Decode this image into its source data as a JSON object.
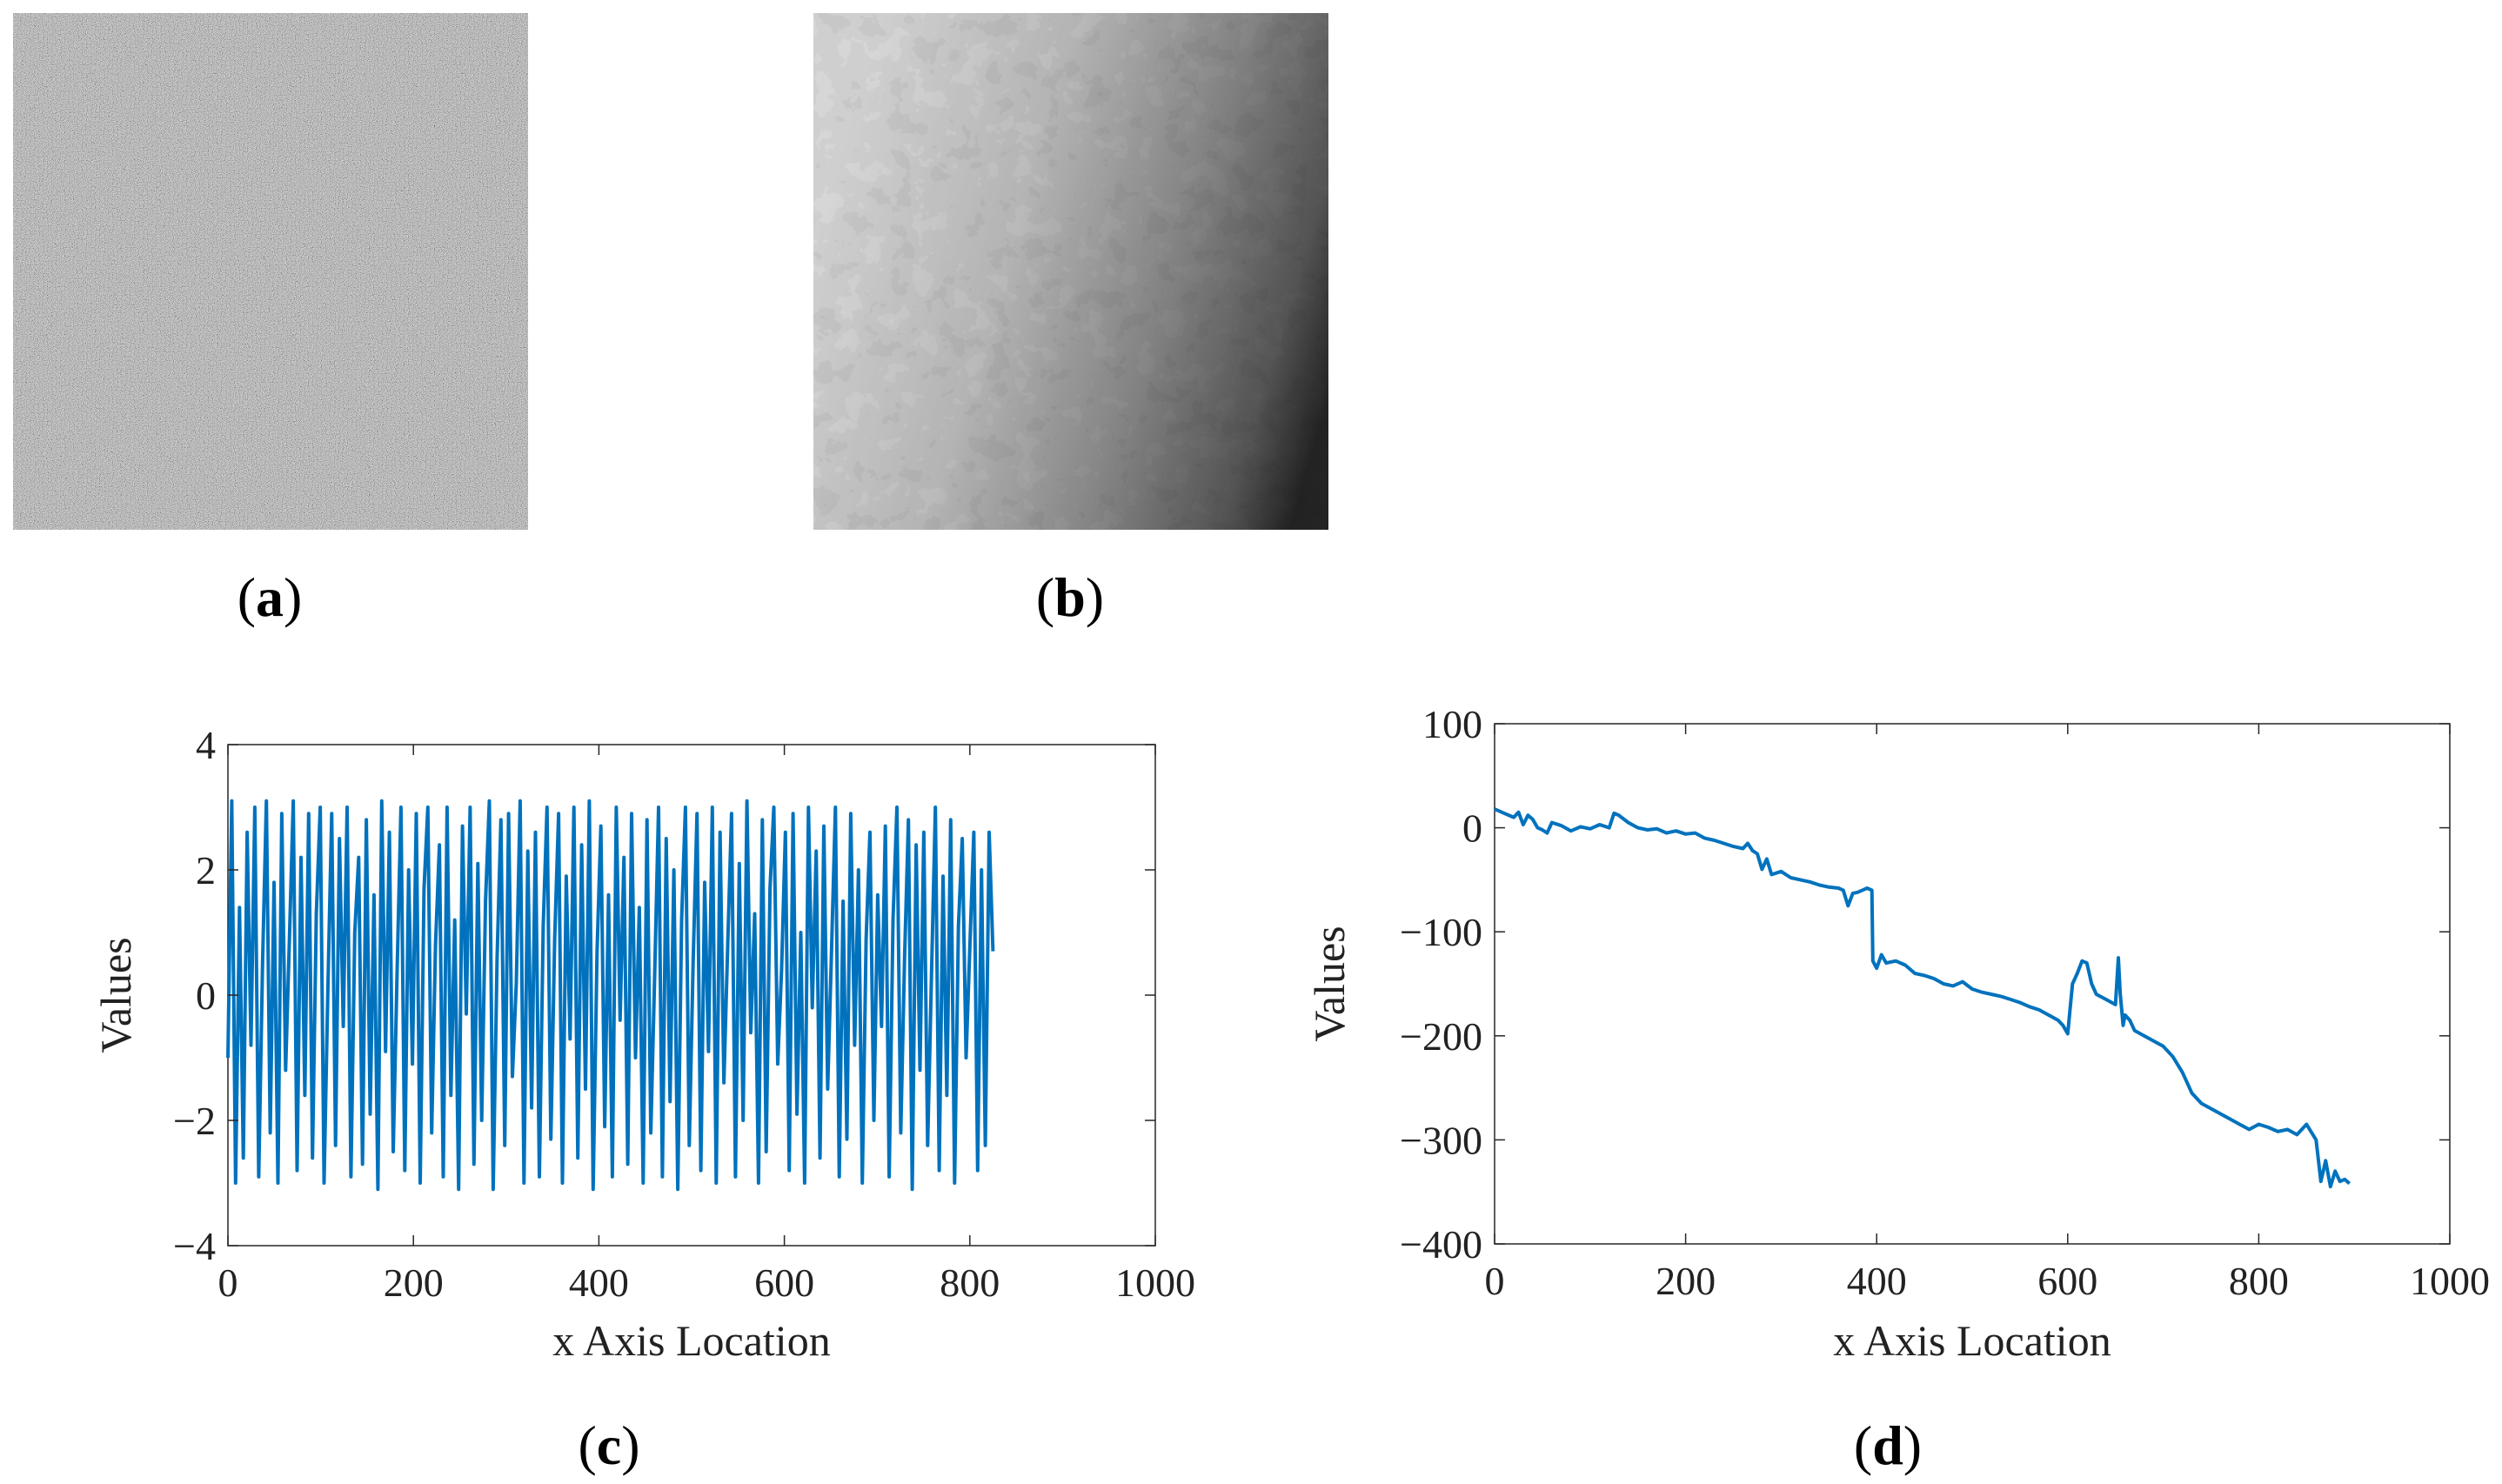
{
  "panels": {
    "a": {
      "label_open": "(",
      "label_letter": "a",
      "label_close": ")"
    },
    "b": {
      "label_open": "(",
      "label_letter": "b",
      "label_close": ")"
    },
    "c": {
      "label_open": "(",
      "label_letter": "c",
      "label_close": ")"
    },
    "d": {
      "label_open": "(",
      "label_letter": "d",
      "label_close": ")"
    }
  },
  "colors": {
    "series": "#0072BD",
    "axis": "#262626"
  },
  "chart_data": [
    {
      "id": "c",
      "type": "line",
      "xlabel": "x Axis Location",
      "ylabel": "Values",
      "xlim": [
        0,
        1000
      ],
      "ylim": [
        -4,
        4
      ],
      "xticks": [
        0,
        200,
        400,
        600,
        800,
        1000
      ],
      "yticks": [
        -4,
        -2,
        0,
        2,
        4
      ],
      "ytick_labels": [
        "−4",
        "−2",
        "0",
        "2",
        "4"
      ],
      "grid": false,
      "series": [
        {
          "values": [
            -1.0,
            3.1,
            -3.0,
            1.4,
            -2.6,
            2.6,
            -0.8,
            3.0,
            -2.9,
            0.5,
            3.1,
            -2.2,
            1.8,
            -3.0,
            2.9,
            -1.2,
            0.9,
            3.1,
            -2.8,
            2.2,
            -1.6,
            2.9,
            -2.6,
            1.3,
            3.0,
            -3.0,
            0.1,
            2.9,
            -2.4,
            2.5,
            -0.5,
            3.0,
            -2.9,
            1.0,
            2.2,
            -2.7,
            2.8,
            -1.9,
            1.6,
            -3.1,
            3.1,
            -0.9,
            2.6,
            -2.5,
            0.4,
            3.0,
            -2.8,
            2.0,
            -1.1,
            2.9,
            -3.0,
            1.7,
            3.0,
            -2.2,
            0.8,
            2.4,
            -2.9,
            3.0,
            -1.6,
            1.2,
            -3.1,
            2.7,
            -0.3,
            3.0,
            -2.7,
            2.1,
            -2.0,
            1.5,
            3.1,
            -3.1,
            0.6,
            2.8,
            -2.4,
            2.9,
            -1.3,
            0.2,
            3.1,
            -3.0,
            2.3,
            -1.8,
            2.6,
            -2.9,
            1.1,
            3.0,
            -2.3,
            0.9,
            2.9,
            -3.0,
            1.9,
            -0.7,
            3.0,
            -2.6,
            2.4,
            -1.5,
            3.1,
            -3.1,
            0.7,
            2.7,
            -2.1,
            1.6,
            -2.9,
            3.0,
            -0.4,
            2.2,
            -2.7,
            2.9,
            -1.0,
            1.4,
            -3.0,
            2.8,
            -2.2,
            0.3,
            3.0,
            -2.9,
            2.5,
            -1.7,
            2.0,
            -3.1,
            1.2,
            3.0,
            -2.4,
            0.5,
            2.9,
            -2.8,
            1.8,
            -0.9,
            3.0,
            -3.0,
            2.6,
            -1.4,
            0.8,
            2.9,
            -2.9,
            2.1,
            -2.0,
            3.1,
            -0.6,
            1.3,
            -3.0,
            2.8,
            -2.5,
            1.7,
            3.0,
            -1.1,
            0.4,
            2.6,
            -2.8,
            2.9,
            -1.9,
            1.0,
            -3.0,
            3.0,
            -0.2,
            2.3,
            -2.6,
            2.7,
            -1.5,
            0.7,
            3.0,
            -2.9,
            1.5,
            -2.3,
            2.9,
            -0.8,
            2.0,
            -3.0,
            0.9,
            2.6,
            -2.0,
            1.6,
            -0.5,
            2.7,
            -2.9,
            1.2,
            3.0,
            -2.2,
            0.6,
            2.8,
            -3.1,
            2.4,
            -1.2,
            2.6,
            -2.4,
            0.3,
            3.0,
            -2.8,
            1.9,
            -1.6,
            2.8,
            -3.0,
            1.1,
            2.5,
            -1.0,
            0.8,
            2.6,
            -2.8,
            2.0,
            -2.4,
            2.6,
            0.7
          ]
        }
      ]
    },
    {
      "id": "d",
      "type": "line",
      "xlabel": "x Axis Location",
      "ylabel": "Values",
      "xlim": [
        0,
        1000
      ],
      "ylim": [
        -400,
        100
      ],
      "xticks": [
        0,
        200,
        400,
        600,
        800,
        1000
      ],
      "yticks": [
        -400,
        -300,
        -200,
        -100,
        0,
        100
      ],
      "ytick_labels": [
        "−400",
        "−300",
        "−200",
        "−100",
        "0",
        "100"
      ],
      "grid": false,
      "series": [
        {
          "x": [
            0,
            10,
            20,
            25,
            30,
            35,
            40,
            45,
            50,
            55,
            60,
            70,
            80,
            90,
            100,
            110,
            120,
            125,
            130,
            140,
            150,
            160,
            170,
            180,
            190,
            200,
            210,
            220,
            230,
            240,
            250,
            260,
            265,
            270,
            275,
            280,
            285,
            290,
            300,
            310,
            320,
            330,
            340,
            350,
            360,
            365,
            370,
            375,
            380,
            385,
            390,
            395,
            396,
            400,
            405,
            410,
            420,
            430,
            440,
            450,
            460,
            470,
            480,
            490,
            500,
            510,
            520,
            530,
            540,
            550,
            560,
            570,
            580,
            590,
            595,
            600,
            605,
            610,
            615,
            620,
            625,
            630,
            640,
            650,
            653,
            655,
            658,
            660,
            665,
            670,
            680,
            690,
            700,
            710,
            720,
            730,
            740,
            750,
            760,
            770,
            780,
            790,
            800,
            810,
            820,
            830,
            840,
            850,
            860,
            865,
            870,
            875,
            880,
            885,
            890,
            895
          ],
          "y": [
            18,
            14,
            10,
            15,
            3,
            12,
            8,
            0,
            -2,
            -5,
            5,
            2,
            -3,
            1,
            -1,
            3,
            0,
            14,
            12,
            5,
            0,
            -2,
            -1,
            -5,
            -3,
            -6,
            -5,
            -10,
            -12,
            -15,
            -18,
            -20,
            -15,
            -22,
            -25,
            -40,
            -30,
            -45,
            -42,
            -48,
            -50,
            -52,
            -55,
            -57,
            -58,
            -60,
            -75,
            -63,
            -62,
            -60,
            -58,
            -60,
            -128,
            -135,
            -122,
            -130,
            -128,
            -132,
            -140,
            -142,
            -145,
            -150,
            -152,
            -148,
            -155,
            -158,
            -160,
            -162,
            -165,
            -168,
            -172,
            -175,
            -180,
            -185,
            -190,
            -198,
            -150,
            -140,
            -128,
            -130,
            -150,
            -160,
            -165,
            -170,
            -125,
            -160,
            -190,
            -180,
            -185,
            -195,
            -200,
            -205,
            -210,
            -220,
            -235,
            -255,
            -265,
            -270,
            -275,
            -280,
            -285,
            -290,
            -285,
            -288,
            -292,
            -290,
            -295,
            -285,
            -300,
            -340,
            -320,
            -345,
            -330,
            -340,
            -338,
            -342
          ]
        }
      ]
    }
  ]
}
